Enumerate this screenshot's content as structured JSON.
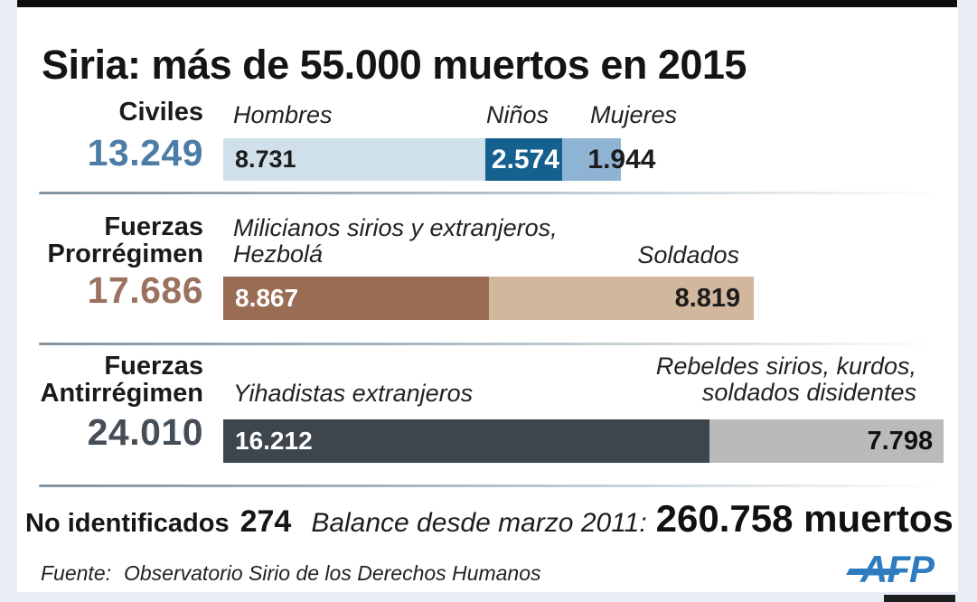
{
  "branding": {
    "agency_logo": "AFP",
    "brand_color": "#2e7bbf"
  },
  "chart_data": {
    "type": "bar",
    "orientation": "horizontal",
    "title": "Siria: más de 55.000 muertos en 2015",
    "unit": "muertos",
    "legend_position": "labels-above-segments",
    "grid": false,
    "rows": [
      {
        "group_lines": [
          "Civiles"
        ],
        "total_display": "13.249",
        "total_value": 13249,
        "total_color": "#4d7ca6",
        "segments": [
          {
            "label_lines": [
              "Hombres"
            ],
            "display": "8.731",
            "value": 8731,
            "color": "#cfe0eb",
            "text_color": "#1c1c1c"
          },
          {
            "label_lines": [
              "Niños"
            ],
            "display": "2.574",
            "value": 2574,
            "color": "#14608f",
            "text_color": "#ffffff"
          },
          {
            "label_lines": [
              "Mujeres"
            ],
            "display": "1.944",
            "value": 1944,
            "color": "#8fb3d3",
            "text_color": "#1c1c1c"
          }
        ]
      },
      {
        "group_lines": [
          "Fuerzas",
          "Prorrégimen"
        ],
        "total_display": "17.686",
        "total_value": 17686,
        "total_color": "#9b7260",
        "segments": [
          {
            "label_lines": [
              "Milicianos sirios y extranjeros,",
              "Hezbolá"
            ],
            "display": "8.867",
            "value": 8867,
            "color": "#996c53",
            "text_color": "#ffffff"
          },
          {
            "label_lines": [
              "Soldados"
            ],
            "display": "8.819",
            "value": 8819,
            "color": "#d3b69e",
            "text_color": "#1c1c1c"
          }
        ]
      },
      {
        "group_lines": [
          "Fuerzas",
          "Antirrégimen"
        ],
        "total_display": "24.010",
        "total_value": 24010,
        "total_color": "#454e57",
        "segments": [
          {
            "label_lines": [
              "Yihadistas extranjeros"
            ],
            "display": "16.212",
            "value": 16212,
            "color": "#3d454d",
            "text_color": "#ffffff"
          },
          {
            "label_lines": [
              "Rebeldes sirios, kurdos,",
              "soldados disidentes"
            ],
            "display": "7.798",
            "value": 7798,
            "color": "#bababa",
            "text_color": "#111111"
          }
        ]
      }
    ],
    "notes": {
      "unidentified_label": "No identificados",
      "unidentified_value": "274",
      "balance_label": "Balance desde marzo 2011:",
      "balance_value": "260.758 muertos"
    },
    "source_label": "Fuente:",
    "source_text": "Observatorio Sirio de los Derechos Humanos"
  }
}
